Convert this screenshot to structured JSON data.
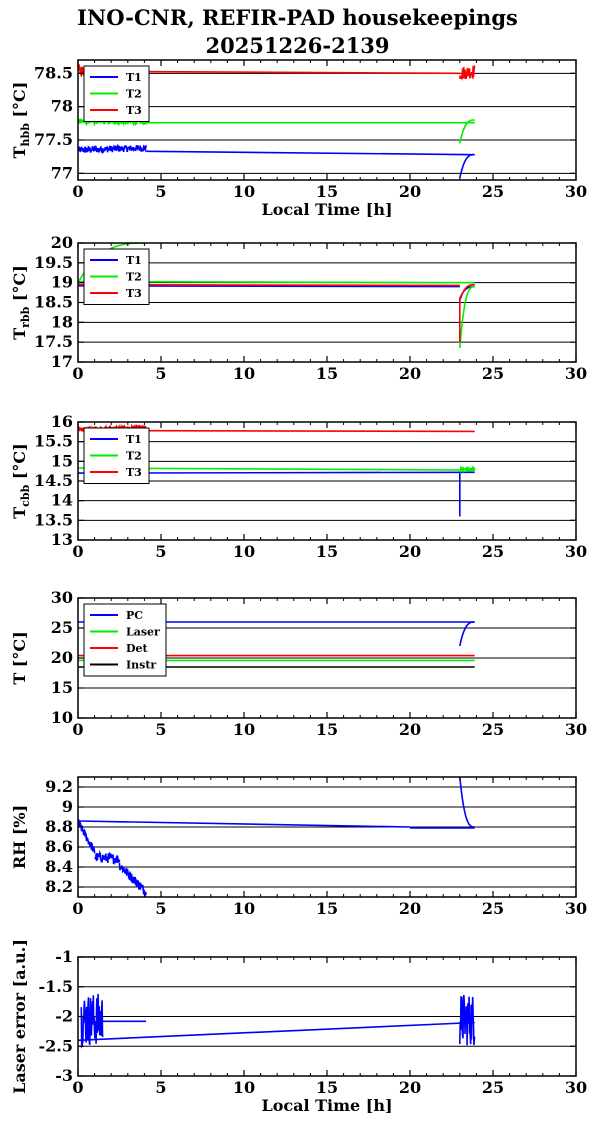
{
  "title_line1": "INO-CNR, REFIR-PAD housekeepings",
  "title_line2": "20251226-2139",
  "colors": {
    "blue": "#0000ff",
    "green": "#00ee00",
    "red": "#ff0000",
    "black": "#000000"
  },
  "chart_data": [
    {
      "type": "line",
      "ylabel": "T",
      "ylabel_sub": "hbb",
      "ylabel_unit": " [°C]",
      "xlabel": "Local Time [h]",
      "xlim": [
        0,
        30
      ],
      "ylim": [
        76.9,
        78.7
      ],
      "x_ticks": [
        "0",
        "5",
        "10",
        "15",
        "20",
        "25",
        "30"
      ],
      "y_ticks": [
        {
          "v": 77,
          "label": "77"
        },
        {
          "v": 77.5,
          "label": "77.5"
        },
        {
          "v": 78,
          "label": "78"
        },
        {
          "v": 78.5,
          "label": "78.5"
        }
      ],
      "grid_y": [
        77,
        77.5,
        78,
        78.5
      ],
      "legend_position": "top-left",
      "series": [
        {
          "name": "T1",
          "color": "#0000ff",
          "segments": [
            {
              "kind": "noise",
              "x": [
                0,
                4.1
              ],
              "y": [
                77.35,
                77.38
              ],
              "amp": 0.05
            },
            {
              "kind": "line",
              "x": [
                4.1,
                23.9
              ],
              "y": [
                77.33,
                77.28
              ]
            },
            {
              "kind": "curve",
              "x": [
                23.0,
                23.9
              ],
              "y": [
                76.93,
                77.28
              ]
            }
          ]
        },
        {
          "name": "T2",
          "color": "#00ee00",
          "segments": [
            {
              "kind": "noise",
              "x": [
                0,
                4.1
              ],
              "y": [
                77.78,
                77.77
              ],
              "amp": 0.04
            },
            {
              "kind": "line",
              "x": [
                4.1,
                23.9
              ],
              "y": [
                77.76,
                77.76
              ]
            },
            {
              "kind": "curve",
              "x": [
                23.0,
                23.9
              ],
              "y": [
                77.45,
                77.8
              ]
            }
          ]
        },
        {
          "name": "T3",
          "color": "#ff0000",
          "segments": [
            {
              "kind": "noise",
              "x": [
                0,
                0.4
              ],
              "y": [
                78.56,
                78.53
              ],
              "amp": 0.08
            },
            {
              "kind": "line",
              "x": [
                0.4,
                23.0
              ],
              "y": [
                78.53,
                78.5
              ]
            },
            {
              "kind": "noise",
              "x": [
                23.0,
                23.9
              ],
              "y": [
                78.5,
                78.53
              ],
              "amp": 0.1
            }
          ]
        }
      ]
    },
    {
      "type": "line",
      "ylabel": "T",
      "ylabel_sub": "rbb",
      "ylabel_unit": " [°C]",
      "xlabel": "",
      "xlim": [
        0,
        30
      ],
      "ylim": [
        17,
        20
      ],
      "x_ticks": [
        "0",
        "5",
        "10",
        "15",
        "20",
        "25",
        "30"
      ],
      "y_ticks": [
        {
          "v": 17,
          "label": "17"
        },
        {
          "v": 17.5,
          "label": "17.5"
        },
        {
          "v": 18,
          "label": "18"
        },
        {
          "v": 18.5,
          "label": "18.5"
        },
        {
          "v": 19,
          "label": "19"
        },
        {
          "v": 19.5,
          "label": "19.5"
        },
        {
          "v": 20,
          "label": "20"
        }
      ],
      "grid_y": [
        17.5,
        18,
        18.5,
        19,
        19.5
      ],
      "legend_position": "top-left",
      "series": [
        {
          "name": "T1",
          "color": "#0000ff",
          "segments": [
            {
              "kind": "line",
              "x": [
                0,
                23.0
              ],
              "y": [
                18.92,
                18.9
              ]
            },
            {
              "kind": "curve",
              "x": [
                23.0,
                23.9
              ],
              "y": [
                18.6,
                18.9
              ]
            }
          ]
        },
        {
          "name": "T2",
          "color": "#00ee00",
          "segments": [
            {
              "kind": "curve",
              "x": [
                0,
                4.1
              ],
              "y": [
                19.0,
                20.0
              ]
            },
            {
              "kind": "line",
              "x": [
                0,
                23.9
              ],
              "y": [
                19.03,
                19.0
              ]
            },
            {
              "kind": "curve",
              "x": [
                23.0,
                23.9
              ],
              "y": [
                17.35,
                18.9
              ]
            }
          ]
        },
        {
          "name": "T3",
          "color": "#ff0000",
          "segments": [
            {
              "kind": "line",
              "x": [
                0,
                23.0
              ],
              "y": [
                18.95,
                18.93
              ]
            },
            {
              "kind": "line",
              "x": [
                23.0,
                23.0
              ],
              "y": [
                17.5,
                18.6
              ]
            },
            {
              "kind": "curve",
              "x": [
                23.0,
                23.9
              ],
              "y": [
                18.55,
                18.95
              ]
            }
          ]
        }
      ]
    },
    {
      "type": "line",
      "ylabel": "T",
      "ylabel_sub": "cbb",
      "ylabel_unit": " [°C]",
      "xlabel": "",
      "xlim": [
        0,
        30
      ],
      "ylim": [
        13,
        16
      ],
      "x_ticks": [
        "0",
        "5",
        "10",
        "15",
        "20",
        "25",
        "30"
      ],
      "y_ticks": [
        {
          "v": 13,
          "label": "13"
        },
        {
          "v": 13.5,
          "label": "13.5"
        },
        {
          "v": 14,
          "label": "14"
        },
        {
          "v": 14.5,
          "label": "14.5"
        },
        {
          "v": 15,
          "label": "15"
        },
        {
          "v": 15.5,
          "label": "15.5"
        },
        {
          "v": 16,
          "label": "16"
        }
      ],
      "grid_y": [
        13.5,
        14,
        14.5,
        15,
        15.5
      ],
      "legend_position": "top-left",
      "series": [
        {
          "name": "T1",
          "color": "#0000ff",
          "segments": [
            {
              "kind": "line",
              "x": [
                0,
                23.9
              ],
              "y": [
                14.7,
                14.72
              ]
            },
            {
              "kind": "line",
              "x": [
                23.0,
                23.0
              ],
              "y": [
                13.6,
                14.7
              ]
            }
          ]
        },
        {
          "name": "T2",
          "color": "#00ee00",
          "segments": [
            {
              "kind": "line",
              "x": [
                0,
                23.0
              ],
              "y": [
                14.83,
                14.78
              ]
            },
            {
              "kind": "noise",
              "x": [
                23.0,
                23.9
              ],
              "y": [
                14.8,
                14.78
              ],
              "amp": 0.06
            }
          ]
        },
        {
          "name": "T3",
          "color": "#ff0000",
          "segments": [
            {
              "kind": "noise",
              "x": [
                0,
                4.1
              ],
              "y": [
                15.82,
                15.86
              ],
              "amp": 0.05
            },
            {
              "kind": "line",
              "x": [
                4.1,
                23.9
              ],
              "y": [
                15.78,
                15.76
              ]
            }
          ]
        }
      ]
    },
    {
      "type": "line",
      "ylabel": "T [°C]",
      "ylabel_sub": "",
      "ylabel_unit": "",
      "xlabel": "",
      "xlim": [
        0,
        30
      ],
      "ylim": [
        10,
        30
      ],
      "x_ticks": [
        "0",
        "5",
        "10",
        "15",
        "20",
        "25",
        "30"
      ],
      "y_ticks": [
        {
          "v": 10,
          "label": "10"
        },
        {
          "v": 15,
          "label": "15"
        },
        {
          "v": 20,
          "label": "20"
        },
        {
          "v": 25,
          "label": "25"
        },
        {
          "v": 30,
          "label": "30"
        }
      ],
      "grid_y": [
        15,
        20,
        25
      ],
      "legend_position": "top-left",
      "series": [
        {
          "name": "PC",
          "color": "#0000ff",
          "segments": [
            {
              "kind": "line",
              "x": [
                0,
                23.9
              ],
              "y": [
                26.0,
                26.0
              ]
            },
            {
              "kind": "curve",
              "x": [
                23.0,
                23.9
              ],
              "y": [
                22.0,
                26.0
              ]
            }
          ]
        },
        {
          "name": "Laser",
          "color": "#00ee00",
          "segments": [
            {
              "kind": "line",
              "x": [
                0,
                23.9
              ],
              "y": [
                19.6,
                19.6
              ]
            }
          ]
        },
        {
          "name": "Det",
          "color": "#ff0000",
          "segments": [
            {
              "kind": "line",
              "x": [
                0,
                23.9
              ],
              "y": [
                20.4,
                20.4
              ]
            }
          ]
        },
        {
          "name": "Instr",
          "color": "#000000",
          "segments": [
            {
              "kind": "line",
              "x": [
                0,
                23.9
              ],
              "y": [
                18.5,
                18.5
              ]
            }
          ]
        }
      ]
    },
    {
      "type": "line",
      "ylabel": "RH [%]",
      "ylabel_sub": "",
      "ylabel_unit": "",
      "xlabel": "",
      "xlim": [
        0,
        30
      ],
      "ylim": [
        8.1,
        9.3
      ],
      "x_ticks": [
        "0",
        "5",
        "10",
        "15",
        "20",
        "25",
        "30"
      ],
      "y_ticks": [
        {
          "v": 8.2,
          "label": "8.2"
        },
        {
          "v": 8.4,
          "label": "8.4"
        },
        {
          "v": 8.6,
          "label": "8.6"
        },
        {
          "v": 8.8,
          "label": "8.8"
        },
        {
          "v": 9,
          "label": "9"
        },
        {
          "v": 9.2,
          "label": "9.2"
        }
      ],
      "grid_y": [
        8.2,
        8.4,
        8.6,
        8.8,
        9,
        9.2
      ],
      "legend_position": "none",
      "series": [
        {
          "name": "",
          "color": "#0000ff",
          "segments": [
            {
              "kind": "line",
              "x": [
                0,
                20.0
              ],
              "y": [
                8.86,
                8.8
              ]
            },
            {
              "kind": "line",
              "x": [
                20.0,
                23.9
              ],
              "y": [
                8.79,
                8.79
              ]
            },
            {
              "kind": "curve",
              "x": [
                23.0,
                23.9
              ],
              "y": [
                9.3,
                8.8
              ]
            },
            {
              "kind": "noise",
              "x": [
                0,
                1.0
              ],
              "y": [
                8.85,
                8.55
              ],
              "amp": 0.04
            },
            {
              "kind": "noise",
              "x": [
                1.0,
                2.5
              ],
              "y": [
                8.5,
                8.48
              ],
              "amp": 0.05
            },
            {
              "kind": "noise",
              "x": [
                2.5,
                4.1
              ],
              "y": [
                8.42,
                8.15
              ],
              "amp": 0.05
            }
          ]
        }
      ]
    },
    {
      "type": "line",
      "ylabel": "Laser error [a.u.]",
      "ylabel_sub": "",
      "ylabel_unit": "",
      "xlabel": "Local Time [h]",
      "xlim": [
        0,
        30
      ],
      "ylim": [
        -3,
        -1
      ],
      "x_ticks": [
        "0",
        "5",
        "10",
        "15",
        "20",
        "25",
        "30"
      ],
      "y_ticks": [
        {
          "v": -3,
          "label": "-3"
        },
        {
          "v": -2.5,
          "label": "-2.5"
        },
        {
          "v": -2,
          "label": "-2"
        },
        {
          "v": -1.5,
          "label": "-1.5"
        },
        {
          "v": -1,
          "label": "-1"
        }
      ],
      "grid_y": [
        -2.5,
        -2,
        -1.5
      ],
      "legend_position": "none",
      "series": [
        {
          "name": "",
          "color": "#0000ff",
          "segments": [
            {
              "kind": "line",
              "x": [
                0,
                23.9
              ],
              "y": [
                -2.4,
                -2.1
              ]
            },
            {
              "kind": "noise",
              "x": [
                0.2,
                1.5
              ],
              "y": [
                -2.05,
                -2.05
              ],
              "amp": 0.45
            },
            {
              "kind": "line",
              "x": [
                1.5,
                4.1
              ],
              "y": [
                -2.08,
                -2.08
              ]
            },
            {
              "kind": "noise",
              "x": [
                23.0,
                23.9
              ],
              "y": [
                -2.05,
                -2.05
              ],
              "amp": 0.45
            }
          ]
        }
      ]
    }
  ]
}
